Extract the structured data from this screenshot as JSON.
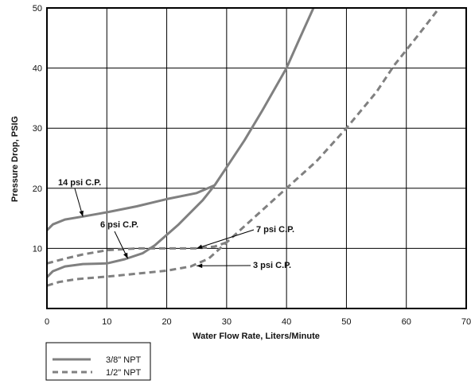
{
  "chart_data": {
    "type": "line",
    "xlabel": "Water Flow Rate, Liters/Minute",
    "ylabel": "Pressure Drop, PSIG",
    "xlim": [
      0,
      70
    ],
    "ylim": [
      0,
      50
    ],
    "x_ticks": [
      0,
      10,
      20,
      30,
      40,
      50,
      60,
      70
    ],
    "y_ticks": [
      10,
      20,
      30,
      40,
      50
    ],
    "grid": true,
    "legend_position": "bottom-left, below chart",
    "line_color": "#808080",
    "series": [
      {
        "name": "3/8\" NPT",
        "style": "solid",
        "curves": [
          {
            "label": "14 psi C.P.",
            "points": [
              [
                0,
                13
              ],
              [
                1,
                14
              ],
              [
                3,
                14.8
              ],
              [
                6,
                15.3
              ],
              [
                10,
                16
              ],
              [
                15,
                17
              ],
              [
                20,
                18.2
              ],
              [
                25,
                19.2
              ],
              [
                28,
                20.5
              ]
            ]
          },
          {
            "label": "6 psi C.P.",
            "points": [
              [
                0,
                5.2
              ],
              [
                1,
                6.2
              ],
              [
                3,
                7
              ],
              [
                6,
                7.4
              ],
              [
                10,
                7.5
              ],
              [
                13,
                8.2
              ],
              [
                16,
                9.2
              ],
              [
                18,
                10.5
              ],
              [
                22,
                14
              ],
              [
                26,
                18
              ],
              [
                28,
                20.5
              ],
              [
                30,
                23.5
              ],
              [
                33,
                28
              ],
              [
                36,
                33
              ],
              [
                40,
                40
              ],
              [
                42,
                44.5
              ],
              [
                44.5,
                50
              ]
            ]
          }
        ]
      },
      {
        "name": "1/2\" NPT",
        "style": "dashed",
        "curves": [
          {
            "label": "7 psi C.P.",
            "points": [
              [
                0,
                7.5
              ],
              [
                3,
                8.3
              ],
              [
                6,
                9
              ],
              [
                10,
                9.7
              ],
              [
                15,
                10
              ],
              [
                20,
                10
              ],
              [
                25,
                10
              ],
              [
                28,
                10.3
              ],
              [
                30,
                11
              ]
            ]
          },
          {
            "label": "3 psi C.P.",
            "points": [
              [
                0,
                3.8
              ],
              [
                2,
                4.4
              ],
              [
                5,
                4.9
              ],
              [
                10,
                5.3
              ],
              [
                15,
                5.8
              ],
              [
                20,
                6.3
              ],
              [
                24,
                7
              ],
              [
                27,
                8.3
              ],
              [
                30,
                11
              ],
              [
                35,
                15.5
              ],
              [
                40,
                20
              ],
              [
                45,
                24.5
              ],
              [
                50,
                30
              ],
              [
                55,
                36
              ],
              [
                58,
                40.5
              ],
              [
                62,
                45.5
              ],
              [
                65.5,
                50
              ]
            ]
          }
        ]
      }
    ],
    "annotations": [
      {
        "text": "14 psi C.P.",
        "arrow_to": [
          6,
          15.3
        ]
      },
      {
        "text": "6 psi C.P.",
        "arrow_to": [
          13.5,
          8.3
        ]
      },
      {
        "text": "7 psi C.P.",
        "arrow_to": [
          25,
          10
        ]
      },
      {
        "text": "3 psi C.P.",
        "arrow_to": [
          25,
          7.1
        ]
      }
    ]
  },
  "legend": [
    {
      "label": "3/8\" NPT",
      "style": "solid"
    },
    {
      "label": "1/2\" NPT",
      "style": "dashed"
    }
  ]
}
